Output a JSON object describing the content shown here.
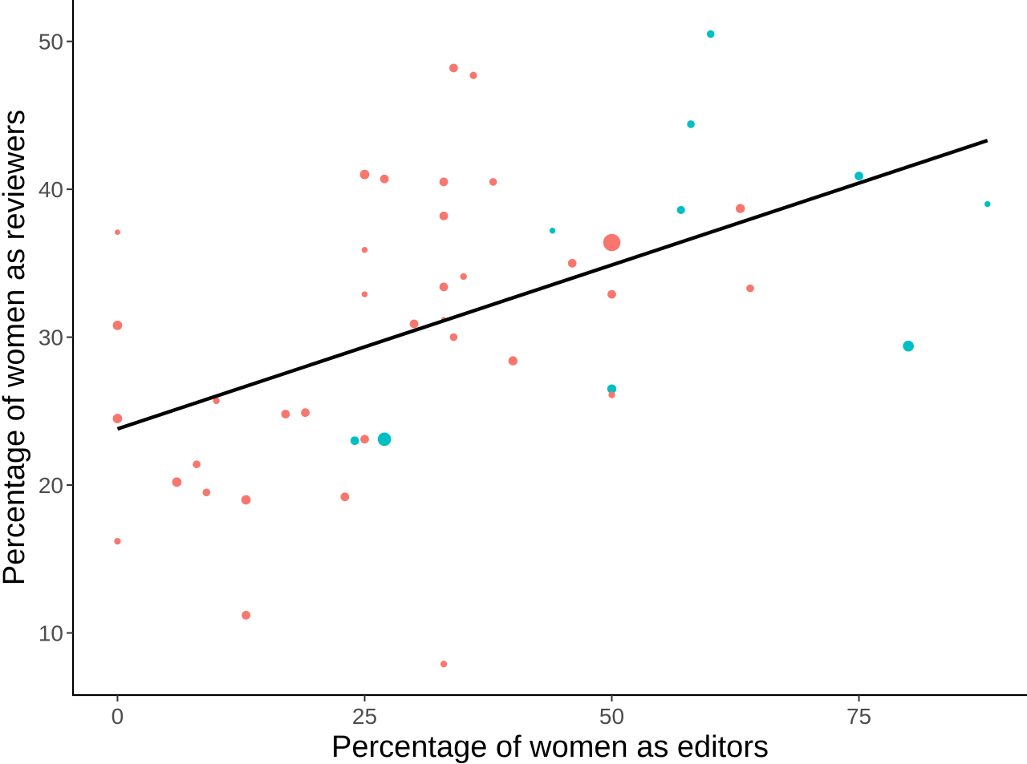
{
  "chart_data": {
    "type": "scatter",
    "xlabel": "Percentage of women as editors",
    "ylabel": "Percentage of women as reviewers",
    "xlim": [
      -4.5,
      92
    ],
    "ylim": [
      5.8,
      52.8
    ],
    "x_ticks": [
      0,
      25,
      50,
      75
    ],
    "y_ticks": [
      10,
      20,
      30,
      40,
      50
    ],
    "grid": false,
    "legend": "none",
    "colors": {
      "red": "#F8766D",
      "cyan": "#00BFC4",
      "line": "#000000"
    },
    "trend_line": {
      "x": [
        0,
        88
      ],
      "y": [
        23.8,
        43.3
      ]
    },
    "points": [
      {
        "x": 0,
        "y": 37.1,
        "size": 1,
        "group": "red"
      },
      {
        "x": 0,
        "y": 30.8,
        "size": 3,
        "group": "red"
      },
      {
        "x": 0,
        "y": 24.5,
        "size": 3,
        "group": "red"
      },
      {
        "x": 0,
        "y": 16.2,
        "size": 1.5,
        "group": "red"
      },
      {
        "x": 6,
        "y": 20.2,
        "size": 3,
        "group": "red"
      },
      {
        "x": 8,
        "y": 21.4,
        "size": 2,
        "group": "red"
      },
      {
        "x": 9,
        "y": 19.5,
        "size": 2,
        "group": "red"
      },
      {
        "x": 10,
        "y": 25.7,
        "size": 1.5,
        "group": "red"
      },
      {
        "x": 13,
        "y": 19.0,
        "size": 3,
        "group": "red"
      },
      {
        "x": 13,
        "y": 11.2,
        "size": 2.5,
        "group": "red"
      },
      {
        "x": 17,
        "y": 24.8,
        "size": 2.5,
        "group": "red"
      },
      {
        "x": 19,
        "y": 24.9,
        "size": 2.5,
        "group": "red"
      },
      {
        "x": 23,
        "y": 19.2,
        "size": 2.5,
        "group": "red"
      },
      {
        "x": 24,
        "y": 23.0,
        "size": 2.5,
        "group": "cyan"
      },
      {
        "x": 25,
        "y": 23.1,
        "size": 2.5,
        "group": "red"
      },
      {
        "x": 25,
        "y": 41.0,
        "size": 3,
        "group": "red"
      },
      {
        "x": 25,
        "y": 35.9,
        "size": 1.2,
        "group": "red"
      },
      {
        "x": 25,
        "y": 32.9,
        "size": 1.2,
        "group": "red"
      },
      {
        "x": 27,
        "y": 40.7,
        "size": 2.5,
        "group": "red"
      },
      {
        "x": 27,
        "y": 23.1,
        "size": 6,
        "group": "cyan"
      },
      {
        "x": 30,
        "y": 30.9,
        "size": 2.5,
        "group": "red"
      },
      {
        "x": 33,
        "y": 40.5,
        "size": 2.5,
        "group": "red"
      },
      {
        "x": 33,
        "y": 38.2,
        "size": 2.5,
        "group": "red"
      },
      {
        "x": 33,
        "y": 33.4,
        "size": 2.5,
        "group": "red"
      },
      {
        "x": 33,
        "y": 31.2,
        "size": 0.8,
        "group": "red"
      },
      {
        "x": 33,
        "y": 7.9,
        "size": 1.5,
        "group": "red"
      },
      {
        "x": 34,
        "y": 48.2,
        "size": 2.5,
        "group": "red"
      },
      {
        "x": 34,
        "y": 30.0,
        "size": 2,
        "group": "red"
      },
      {
        "x": 35,
        "y": 34.1,
        "size": 1.5,
        "group": "red"
      },
      {
        "x": 36,
        "y": 47.7,
        "size": 1.8,
        "group": "red"
      },
      {
        "x": 38,
        "y": 40.5,
        "size": 2,
        "group": "red"
      },
      {
        "x": 40,
        "y": 28.4,
        "size": 2.8,
        "group": "red"
      },
      {
        "x": 44,
        "y": 37.2,
        "size": 1.2,
        "group": "cyan"
      },
      {
        "x": 46,
        "y": 35.0,
        "size": 2.5,
        "group": "red"
      },
      {
        "x": 50,
        "y": 36.4,
        "size": 10,
        "group": "red"
      },
      {
        "x": 50,
        "y": 32.9,
        "size": 2.5,
        "group": "red"
      },
      {
        "x": 50,
        "y": 26.5,
        "size": 2.8,
        "group": "cyan"
      },
      {
        "x": 50,
        "y": 26.1,
        "size": 1.5,
        "group": "red"
      },
      {
        "x": 57,
        "y": 38.6,
        "size": 2.2,
        "group": "cyan"
      },
      {
        "x": 58,
        "y": 44.4,
        "size": 2,
        "group": "cyan"
      },
      {
        "x": 60,
        "y": 50.5,
        "size": 2,
        "group": "cyan"
      },
      {
        "x": 63,
        "y": 38.7,
        "size": 2.8,
        "group": "red"
      },
      {
        "x": 64,
        "y": 33.3,
        "size": 2,
        "group": "red"
      },
      {
        "x": 75,
        "y": 40.9,
        "size": 2.5,
        "group": "cyan"
      },
      {
        "x": 80,
        "y": 29.4,
        "size": 4,
        "group": "cyan"
      },
      {
        "x": 88,
        "y": 39.0,
        "size": 1.2,
        "group": "cyan"
      }
    ]
  }
}
